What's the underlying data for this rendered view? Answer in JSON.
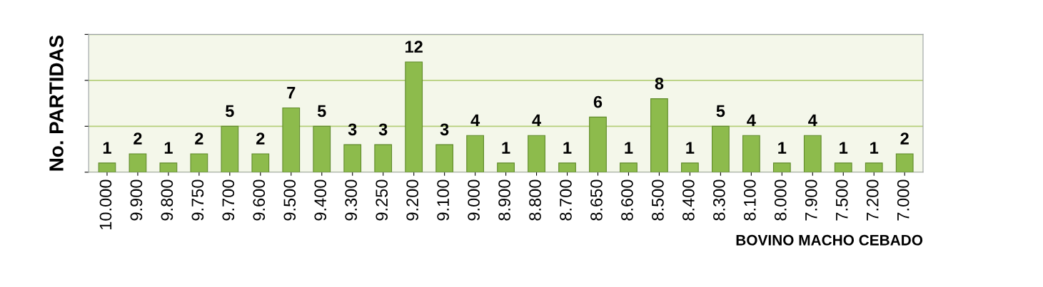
{
  "chart_data": {
    "type": "bar",
    "xlabel": "BOVINO MACHO CEBADO",
    "ylabel": "No. PARTIDAS",
    "categories": [
      "10.000",
      "9.900",
      "9.800",
      "9.750",
      "9.700",
      "9.600",
      "9.500",
      "9.400",
      "9.300",
      "9.250",
      "9.200",
      "9.100",
      "9.000",
      "8.900",
      "8.800",
      "8.700",
      "8.650",
      "8.600",
      "8.500",
      "8.400",
      "8.300",
      "8.100",
      "8.000",
      "7.900",
      "7.500",
      "7.200",
      "7.000"
    ],
    "values": [
      1,
      2,
      1,
      2,
      5,
      2,
      7,
      5,
      3,
      3,
      12,
      3,
      4,
      1,
      4,
      1,
      6,
      1,
      8,
      1,
      5,
      4,
      1,
      4,
      1,
      1,
      2
    ],
    "color": "#8dbb4c",
    "data_labels": true,
    "grid": "y",
    "ylim": [
      0,
      15
    ],
    "yticks": [
      {
        "value": 0,
        "label": null
      },
      {
        "value": 5,
        "label": null
      },
      {
        "value": 10,
        "label": null
      },
      {
        "value": 15,
        "label": null
      }
    ]
  }
}
